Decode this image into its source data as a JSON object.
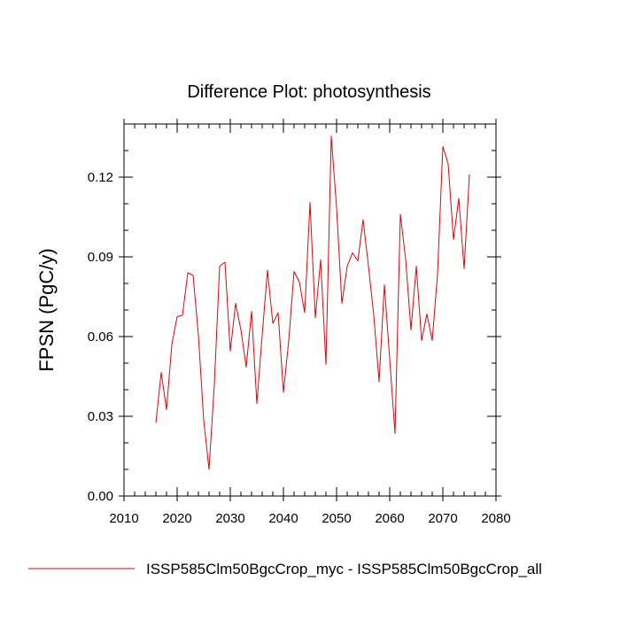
{
  "chart_data": {
    "type": "line",
    "title": "Difference Plot: photosynthesis",
    "xlabel": "",
    "ylabel": "FPSN  (PgC/y)",
    "xlim": [
      2010,
      2080
    ],
    "ylim": [
      0.0,
      0.14
    ],
    "xticks": [
      2010,
      2020,
      2030,
      2040,
      2050,
      2060,
      2070,
      2080
    ],
    "xtick_labels": [
      "2010",
      "2020",
      "2030",
      "2040",
      "2050",
      "2060",
      "2070",
      "2080"
    ],
    "yticks": [
      0.0,
      0.03,
      0.06,
      0.09,
      0.12
    ],
    "ytick_labels": [
      "0.00",
      "0.03",
      "0.06",
      "0.09",
      "0.12"
    ],
    "grid": false,
    "legend_position": "bottom",
    "x": [
      2016,
      2017,
      2018,
      2019,
      2020,
      2021,
      2022,
      2023,
      2024,
      2025,
      2026,
      2027,
      2028,
      2029,
      2030,
      2031,
      2032,
      2033,
      2034,
      2035,
      2036,
      2037,
      2038,
      2039,
      2040,
      2041,
      2042,
      2043,
      2044,
      2045,
      2046,
      2047,
      2048,
      2049,
      2050,
      2051,
      2052,
      2053,
      2054,
      2055,
      2056,
      2057,
      2058,
      2059,
      2060,
      2061,
      2062,
      2063,
      2064,
      2065,
      2066,
      2067,
      2068,
      2069,
      2070,
      2071,
      2072,
      2073,
      2074,
      2075
    ],
    "series": [
      {
        "name": "ISSP585Clm50BgcCrop_myc - ISSP585Clm50BgcCrop_all",
        "color": "#e8000b",
        "values": [
          0.0275,
          0.0465,
          0.0325,
          0.057,
          0.0675,
          0.068,
          0.084,
          0.083,
          0.0605,
          0.0285,
          0.01,
          0.042,
          0.0865,
          0.088,
          0.0545,
          0.0725,
          0.0625,
          0.0485,
          0.0695,
          0.0348,
          0.0605,
          0.085,
          0.065,
          0.069,
          0.039,
          0.0585,
          0.0845,
          0.0805,
          0.069,
          0.1105,
          0.067,
          0.089,
          0.0495,
          0.1355,
          0.1085,
          0.0725,
          0.0865,
          0.0915,
          0.0885,
          0.104,
          0.0865,
          0.068,
          0.043,
          0.0795,
          0.0515,
          0.0235,
          0.106,
          0.089,
          0.0625,
          0.0865,
          0.0585,
          0.0685,
          0.0585,
          0.0835,
          0.1315,
          0.125,
          0.0965,
          0.112,
          0.0855,
          0.121
        ]
      }
    ]
  }
}
